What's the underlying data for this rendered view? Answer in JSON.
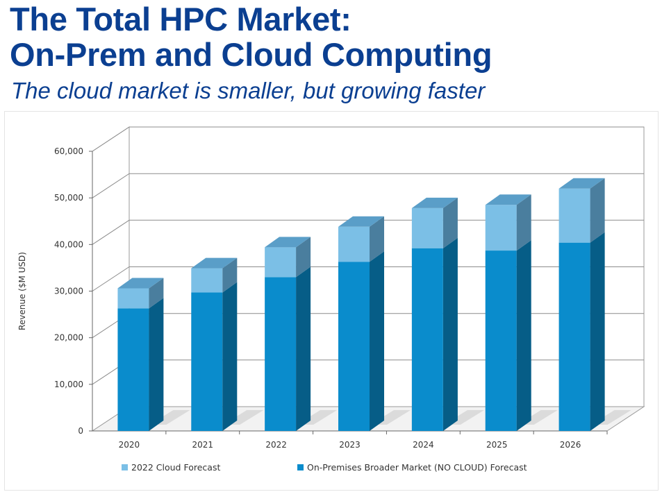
{
  "header": {
    "title_line1": "The Total HPC Market:",
    "title_line2": "On-Prem and Cloud Computing",
    "subtitle": "The cloud market is smaller, but growing faster"
  },
  "colors": {
    "title": "#0b3f91",
    "onprem_front": "#0a8ccc",
    "onprem_side": "#065d87",
    "onprem_top": "#0a7db5",
    "cloud_front": "#7bbfe6",
    "cloud_side": "#4a7e9e",
    "cloud_top": "#5a9ec8"
  },
  "chart_data": {
    "type": "bar",
    "stacked": true,
    "three_d": true,
    "categories": [
      "2020",
      "2021",
      "2022",
      "2023",
      "2024",
      "2025",
      "2026"
    ],
    "series": [
      {
        "name": "On-Premises Broader Market (NO CLOUD) Forecast",
        "values": [
          26300,
          29700,
          33000,
          36300,
          39200,
          38700,
          40400
        ]
      },
      {
        "name": "2022 Cloud Forecast",
        "values": [
          4300,
          5200,
          6400,
          7500,
          8600,
          9800,
          11600
        ]
      }
    ],
    "ylabel": "Revenue ($M USD)",
    "xlabel": "",
    "ylim": [
      0,
      60000
    ],
    "yticks": [
      0,
      10000,
      20000,
      30000,
      40000,
      50000,
      60000
    ],
    "ytick_labels": [
      "0",
      "10,000",
      "20,000",
      "30,000",
      "40,000",
      "50,000",
      "60,000"
    ],
    "grid": true,
    "legend_position": "bottom",
    "legend": [
      "2022 Cloud Forecast",
      "On-Premises Broader Market (NO CLOUD) Forecast"
    ]
  }
}
